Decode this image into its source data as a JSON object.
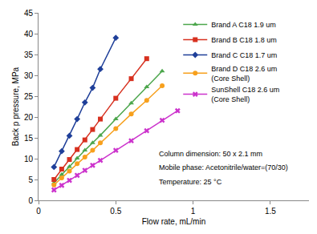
{
  "chart_data": {
    "type": "scatter",
    "x_label": "Flow rate, mL/min",
    "y_label": "Back p pressure, MPa",
    "xlim": [
      0,
      1.75
    ],
    "xticks": [
      0,
      0.5,
      1,
      1.5
    ],
    "ylim": [
      0,
      45
    ],
    "yticks": [
      0,
      5,
      10,
      15,
      20,
      25,
      30,
      35,
      40,
      45
    ],
    "grid": false,
    "legend": "top right",
    "annotations": [
      "Column dimension: 50 x 2.1 mm",
      "Mobile phase: Acetonitrile/water=(70/30)",
      "Temperature: 25 °C"
    ],
    "series": [
      {
        "name": "Brand A C18 1.9 um",
        "color": "#4ca64c",
        "marker": "triangle-up",
        "line_style": "solid",
        "x": [
          0.1,
          0.15,
          0.2,
          0.25,
          0.3,
          0.35,
          0.4,
          0.5,
          0.6,
          0.7,
          0.8
        ],
        "values": [
          4.2,
          6.2,
          8.1,
          10.1,
          12.0,
          13.8,
          15.6,
          19.5,
          23.3,
          27.2,
          31.0
        ]
      },
      {
        "name": "Brand B C18 1.8 um",
        "color": "#d7301f",
        "marker": "square",
        "line_style": "solid",
        "x": [
          0.1,
          0.15,
          0.2,
          0.25,
          0.3,
          0.35,
          0.4,
          0.5,
          0.6,
          0.7
        ],
        "values": [
          5.0,
          7.5,
          9.8,
          12.2,
          14.5,
          17.0,
          19.5,
          24.5,
          29.2,
          34.0
        ]
      },
      {
        "name": "Brand C C18 1.7 um",
        "color": "#1f3f99",
        "marker": "diamond",
        "line_style": "solid",
        "x": [
          0.1,
          0.15,
          0.2,
          0.25,
          0.3,
          0.35,
          0.4,
          0.5
        ],
        "values": [
          8.0,
          11.8,
          15.5,
          19.5,
          23.5,
          27.0,
          31.5,
          39.0
        ]
      },
      {
        "name": "Brand D C18 2.6 um (Core Shell)",
        "color": "#f7a01d",
        "marker": "circle",
        "line_style": "solid",
        "x": [
          0.1,
          0.15,
          0.2,
          0.25,
          0.3,
          0.35,
          0.4,
          0.5,
          0.6,
          0.7,
          0.8
        ],
        "values": [
          3.7,
          5.4,
          7.0,
          8.8,
          10.4,
          12.0,
          13.8,
          17.2,
          20.7,
          24.0,
          27.5
        ]
      },
      {
        "name": "SunShell C18 2.6 um (Core Shell)",
        "color": "#cc33cc",
        "marker": "x",
        "line_style": "solid",
        "x": [
          0.1,
          0.15,
          0.2,
          0.25,
          0.3,
          0.35,
          0.4,
          0.5,
          0.6,
          0.7,
          0.8,
          0.9
        ],
        "values": [
          2.5,
          3.6,
          4.8,
          6.0,
          7.2,
          8.4,
          9.6,
          12.0,
          14.3,
          16.7,
          19.2,
          21.5
        ]
      }
    ]
  }
}
